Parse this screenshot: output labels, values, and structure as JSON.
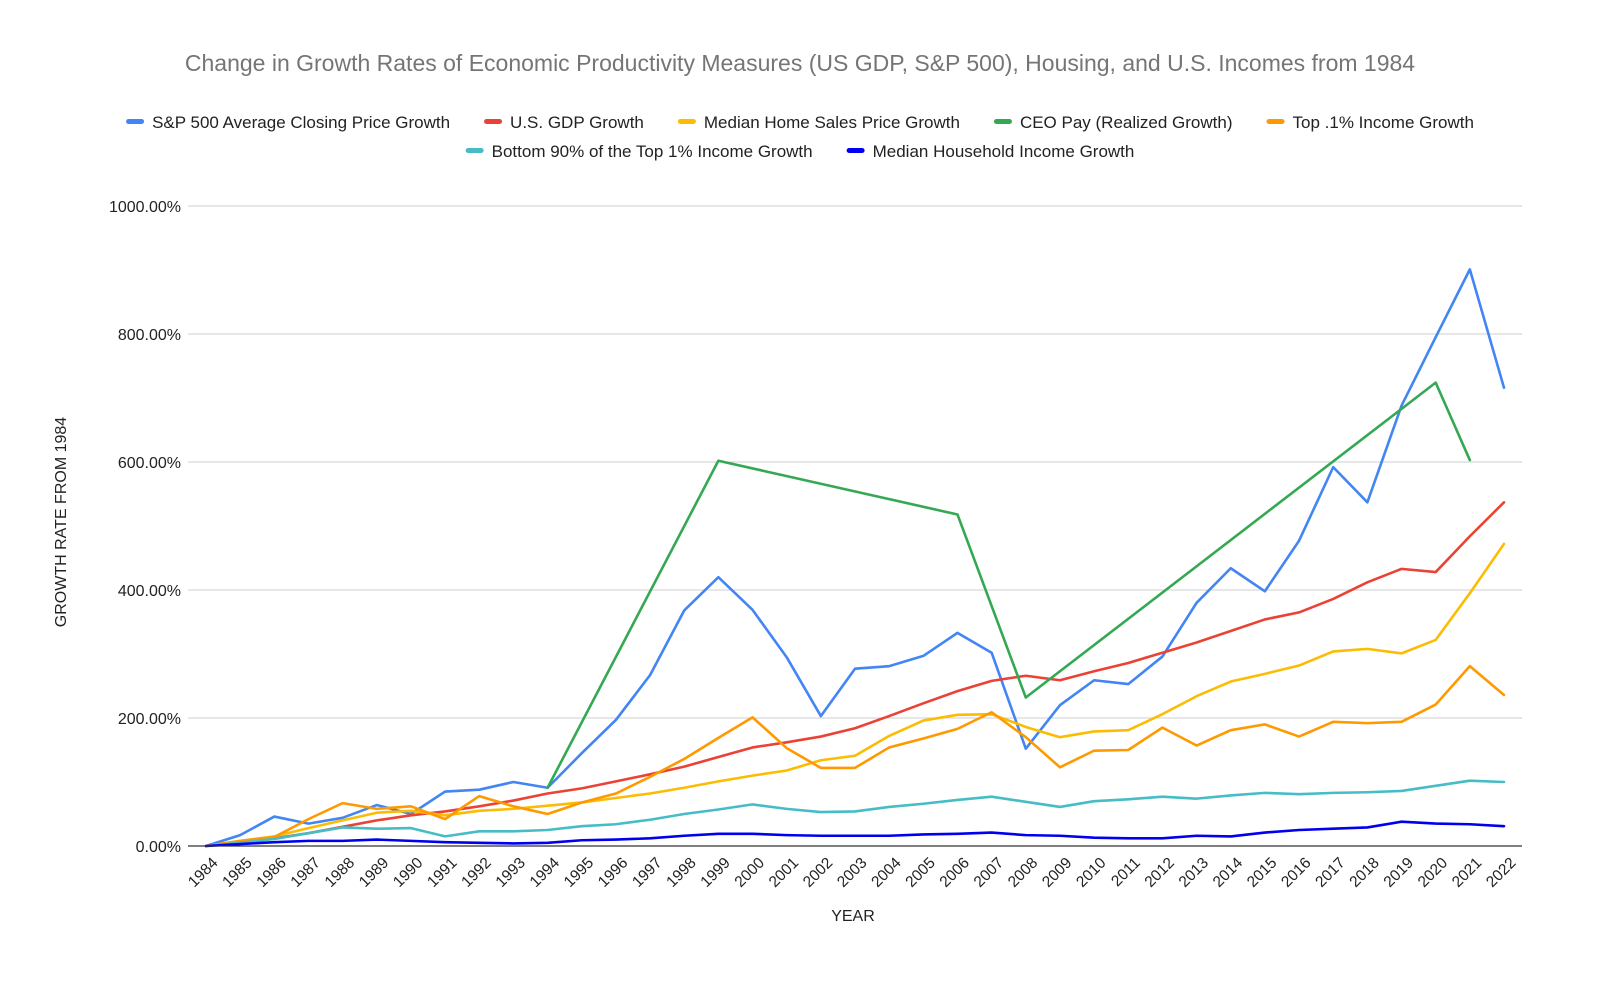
{
  "chart_data": {
    "type": "line",
    "title": "Change in Growth Rates of Economic Productivity Measures (US GDP, S&P 500), Housing, and U.S. Incomes from 1984",
    "xlabel": "YEAR",
    "ylabel": "GROWTH RATE FROM 1984",
    "ylim": [
      0,
      1000
    ],
    "y_ticks": [
      "0.00%",
      "200.00%",
      "400.00%",
      "600.00%",
      "800.00%",
      "1000.00%"
    ],
    "grid": true,
    "legend_position": "top",
    "categories": [
      "1984",
      "1985",
      "1986",
      "1987",
      "1988",
      "1989",
      "1990",
      "1991",
      "1992",
      "1993",
      "1994",
      "1995",
      "1996",
      "1997",
      "1998",
      "1999",
      "2000",
      "2001",
      "2002",
      "2003",
      "2004",
      "2005",
      "2006",
      "2007",
      "2008",
      "2009",
      "2010",
      "2011",
      "2012",
      "2013",
      "2014",
      "2015",
      "2016",
      "2017",
      "2018",
      "2019",
      "2020",
      "2021",
      "2022"
    ],
    "series": [
      {
        "name": "S&P 500 Average Closing Price Growth",
        "color": "#4285f4",
        "values": [
          0,
          17,
          46,
          35,
          44,
          64,
          50,
          85,
          88,
          100,
          91,
          145,
          197,
          267,
          368,
          420,
          369,
          295,
          203,
          277,
          281,
          297,
          333,
          302,
          152,
          220,
          259,
          253,
          296,
          380,
          434,
          398,
          477,
          592,
          537,
          688,
          795,
          901,
          716
        ]
      },
      {
        "name": "U.S. GDP Growth",
        "color": "#ea4335",
        "values": [
          0,
          7,
          12,
          20,
          30,
          40,
          48,
          54,
          62,
          71,
          82,
          90,
          101,
          112,
          124,
          139,
          154,
          162,
          171,
          184,
          203,
          223,
          242,
          258,
          266,
          259,
          273,
          286,
          302,
          318,
          336,
          354,
          365,
          386,
          412,
          433,
          428,
          484,
          537
        ]
      },
      {
        "name": "Median Home Sales Price Growth",
        "color": "#fbbc04",
        "values": [
          0,
          8,
          15,
          28,
          40,
          52,
          55,
          48,
          55,
          58,
          63,
          68,
          75,
          82,
          91,
          101,
          110,
          118,
          134,
          141,
          172,
          196,
          205,
          206,
          186,
          170,
          179,
          181,
          206,
          234,
          257,
          269,
          282,
          304,
          308,
          301,
          322,
          395,
          472
        ]
      },
      {
        "name": "CEO Pay (Realized Growth)",
        "color": "#34a853",
        "values": [
          null,
          null,
          null,
          null,
          null,
          null,
          null,
          null,
          null,
          null,
          91,
          null,
          null,
          null,
          null,
          602,
          null,
          null,
          null,
          null,
          null,
          null,
          518,
          null,
          232,
          null,
          null,
          null,
          null,
          null,
          null,
          null,
          null,
          null,
          null,
          null,
          724,
          603,
          null
        ]
      },
      {
        "name": "Top .1% Income Growth",
        "color": "#ff9900",
        "values": [
          0,
          8,
          14,
          42,
          67,
          58,
          62,
          42,
          78,
          62,
          50,
          68,
          82,
          108,
          136,
          169,
          201,
          153,
          122,
          122,
          154,
          168,
          183,
          209,
          170,
          123,
          149,
          150,
          185,
          157,
          181,
          190,
          171,
          194,
          192,
          194,
          221,
          281,
          236
        ]
      },
      {
        "name": "Bottom 90% of the Top 1% Income Growth",
        "color": "#46bdc6",
        "values": [
          0,
          5,
          11,
          20,
          29,
          27,
          28,
          15,
          23,
          23,
          25,
          31,
          34,
          41,
          50,
          57,
          65,
          58,
          53,
          54,
          61,
          66,
          72,
          77,
          69,
          61,
          70,
          73,
          77,
          74,
          79,
          83,
          81,
          83,
          84,
          86,
          94,
          102,
          100
        ]
      },
      {
        "name": "Median Household Income Growth",
        "color": "#0000ee",
        "values": [
          0,
          3,
          6,
          8,
          8,
          10,
          8,
          6,
          5,
          4,
          5,
          9,
          10,
          12,
          16,
          19,
          19,
          17,
          16,
          16,
          16,
          18,
          19,
          21,
          17,
          16,
          13,
          12,
          12,
          16,
          15,
          21,
          25,
          27,
          29,
          38,
          35,
          34,
          31
        ]
      }
    ]
  }
}
